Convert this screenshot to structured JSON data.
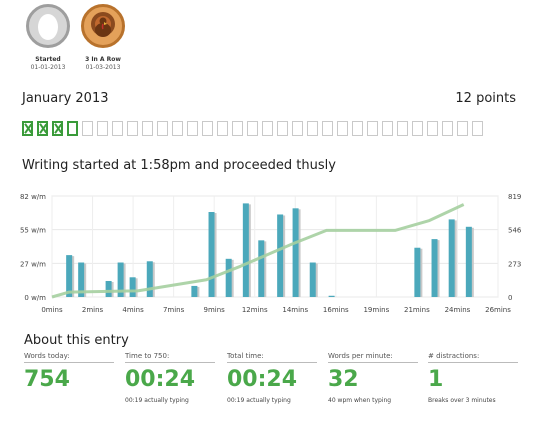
{
  "badges": [
    {
      "name": "Started",
      "date": "01-01-2013"
    },
    {
      "name": "3 In A Row",
      "date": "01-03-2013"
    }
  ],
  "month": {
    "title": "January 2013",
    "points": "12 points"
  },
  "days": {
    "total": 31,
    "completed": 3,
    "partial": 1
  },
  "chart_title": "Writing started at 1:58pm and proceeded thusly",
  "chart_data": {
    "type": "bar",
    "x": [
      1,
      1.7,
      3.3,
      4,
      4.7,
      5.7,
      8.3,
      9.3,
      10.3,
      11.3,
      12.2,
      13.3,
      14.2,
      15.2,
      16.3,
      21.3,
      22.3,
      23.3,
      24.3
    ],
    "values": [
      34,
      28,
      13,
      28,
      16,
      29,
      9,
      69,
      31,
      76,
      46,
      67,
      72,
      28,
      1,
      40,
      47,
      63,
      57
    ],
    "xticks": [
      "0mins",
      "2mins",
      "4mins",
      "7mins",
      "9mins",
      "12mins",
      "14mins",
      "16mins",
      "19mins",
      "21mins",
      "24mins",
      "26mins"
    ],
    "y_left_ticks": [
      "0 w/m",
      "27 w/m",
      "55 w/m",
      "82 w/m"
    ],
    "y_right_ticks": [
      "0",
      "273",
      "546",
      "819"
    ],
    "ylim_left": [
      0,
      82
    ],
    "ylim_right": [
      0,
      819
    ],
    "xlim": [
      0,
      26
    ],
    "cumulative": {
      "x": [
        0,
        1,
        5,
        9,
        11,
        14,
        16,
        20,
        22,
        24
      ],
      "y": [
        0,
        40,
        50,
        140,
        250,
        430,
        540,
        540,
        620,
        750
      ]
    },
    "bar_color": "#4ba8bb",
    "line_color": "#a5cfa0"
  },
  "about_title": "About this entry",
  "stats": [
    {
      "label": "Words today:",
      "value": "754",
      "sub": ""
    },
    {
      "label": "Time to 750:",
      "value": "00:24",
      "sub": "00:19 actually typing"
    },
    {
      "label": "Total time:",
      "value": "00:24",
      "sub": "00:19 actually typing"
    },
    {
      "label": "Words per minute:",
      "value": "32",
      "sub": "40 wpm when typing"
    },
    {
      "label": "# distractions:",
      "value": "1",
      "sub": "Breaks over 3 minutes"
    }
  ]
}
